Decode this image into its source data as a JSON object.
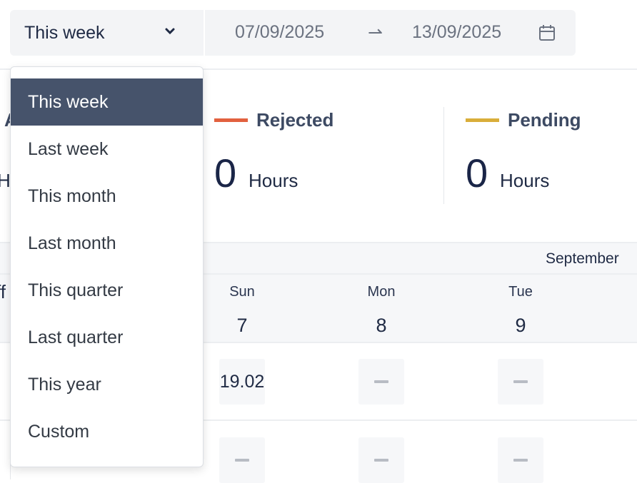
{
  "filter": {
    "selected": "This week",
    "start_date": "07/09/2025",
    "end_date": "13/09/2025",
    "arrow": "⇀"
  },
  "stats": [
    {
      "label": "Rejected",
      "value": "0",
      "unit": "Hours",
      "color": "#e2613f"
    },
    {
      "label": "Pending",
      "value": "0",
      "unit": "Hours",
      "color": "#d9ae3a"
    }
  ],
  "obscured_fragments": {
    "stat": "A",
    "unit": "H",
    "column": "ff"
  },
  "calendar": {
    "month": "September",
    "days": [
      {
        "name": "Sun",
        "num": "7"
      },
      {
        "name": "Mon",
        "num": "8"
      },
      {
        "name": "Tue",
        "num": "9"
      }
    ],
    "rows": [
      [
        "19.02",
        "—",
        "—"
      ],
      [
        "—",
        "—",
        "—"
      ]
    ]
  },
  "dropdown": {
    "options": [
      "This week",
      "Last week",
      "This month",
      "Last month",
      "This quarter",
      "Last quarter",
      "This year",
      "Custom"
    ],
    "selected_index": 0
  }
}
